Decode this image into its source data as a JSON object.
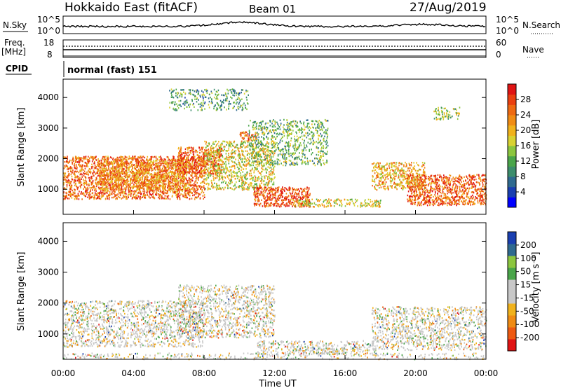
{
  "header": {
    "title": "Hokkaido East (fitACF)",
    "beam": "Beam 01",
    "date": "27/Aug/2019"
  },
  "top_panels": {
    "nsky_label": "N.Sky",
    "nsky_left_ticks": [
      "10^5",
      "10^0"
    ],
    "nsearch_label": "N.Search",
    "nsearch_right_ticks": [
      "10^5",
      "10^0"
    ],
    "freq_label_1": "Freq.",
    "freq_label_2": "[MHz]",
    "freq_ticks": [
      "18",
      "8"
    ],
    "nave_label": "Nave",
    "nave_ticks": [
      "60",
      "0"
    ],
    "cpid_label": "CPID",
    "cpid_text": "normal (fast) 151"
  },
  "chart_data": [
    {
      "type": "heatmap",
      "panel": "power",
      "ylabel": "Slant Range [km]",
      "xlabel": "",
      "x_ticks": [
        "00:00",
        "04:00",
        "08:00",
        "12:00",
        "16:00",
        "20:00",
        "00:00"
      ],
      "xlim_hours": [
        0,
        24
      ],
      "y_ticks": [
        1000,
        2000,
        3000,
        4000
      ],
      "ylim": [
        180,
        4600
      ],
      "colorbar_label": "Power [dB]",
      "colorbar_ticks": [
        "28",
        "24",
        "20",
        "16",
        "12",
        "8",
        "4"
      ],
      "colorbar_colors": [
        "#0000ff",
        "#1a3fb0",
        "#2f6a8f",
        "#3c8d6c",
        "#4aa54a",
        "#8cc63f",
        "#d9d232",
        "#f0b21c",
        "#f08c14",
        "#ee6a12",
        "#ea4010",
        "#e01414"
      ],
      "scatter_regions": [
        {
          "t0": 0.0,
          "t1": 8.0,
          "r0": 700,
          "r1": 2100,
          "level": 0.82
        },
        {
          "t0": 2.0,
          "t1": 7.0,
          "r0": 1000,
          "r1": 2000,
          "level": 0.75
        },
        {
          "t0": 6.5,
          "t1": 9.0,
          "r0": 1500,
          "r1": 2400,
          "level": 0.85
        },
        {
          "t0": 8.0,
          "t1": 12.0,
          "r0": 1000,
          "r1": 2600,
          "level": 0.6
        },
        {
          "t0": 10.0,
          "t1": 11.0,
          "r0": 2600,
          "r1": 2900,
          "level": 0.8
        },
        {
          "t0": 10.8,
          "t1": 14.0,
          "r0": 450,
          "r1": 1100,
          "level": 0.88
        },
        {
          "t0": 13.0,
          "t1": 18.0,
          "r0": 450,
          "r1": 700,
          "level": 0.6
        },
        {
          "t0": 17.5,
          "t1": 20.5,
          "r0": 1000,
          "r1": 1900,
          "level": 0.7
        },
        {
          "t0": 19.5,
          "t1": 24.0,
          "r0": 500,
          "r1": 1500,
          "level": 0.85
        },
        {
          "t0": 6.0,
          "t1": 10.5,
          "r0": 3600,
          "r1": 4300,
          "level": 0.4
        },
        {
          "t0": 10.5,
          "t1": 15.0,
          "r0": 1800,
          "r1": 3300,
          "level": 0.45
        },
        {
          "t0": 21.0,
          "t1": 22.5,
          "r0": 3300,
          "r1": 3700,
          "level": 0.5
        }
      ]
    },
    {
      "type": "heatmap",
      "panel": "velocity",
      "ylabel": "Slant Range [km]",
      "xlabel": "Time UT",
      "x_ticks": [
        "00:00",
        "04:00",
        "08:00",
        "12:00",
        "16:00",
        "20:00",
        "00:00"
      ],
      "xlim_hours": [
        0,
        24
      ],
      "y_ticks": [
        1000,
        2000,
        3000,
        4000
      ],
      "ylim": [
        180,
        4600
      ],
      "colorbar_label": "Velocity [m s⁻¹]",
      "colorbar_ticks": [
        "200",
        "100",
        "50",
        "15",
        "-15",
        "-50",
        "-100",
        "-200"
      ],
      "colorbar_colors": [
        "#e01414",
        "#ee5a12",
        "#f08c14",
        "#f0b21c",
        "#c8c8c8",
        "#c8c8c8",
        "#4aa54a",
        "#8cc63f",
        "#2f6a8f",
        "#1a3fb0"
      ],
      "scatter_regions": [
        {
          "t0": 0.0,
          "t1": 8.0,
          "r0": 600,
          "r1": 2100,
          "level": 0.5
        },
        {
          "t0": 6.5,
          "t1": 12.0,
          "r0": 900,
          "r1": 2600,
          "level": 0.5
        },
        {
          "t0": 11.0,
          "t1": 18.0,
          "r0": 350,
          "r1": 800,
          "level": 0.5
        },
        {
          "t0": 17.5,
          "t1": 24.0,
          "r0": 500,
          "r1": 1900,
          "level": 0.5
        },
        {
          "t0": 13.5,
          "t1": 16.0,
          "r0": 350,
          "r1": 550,
          "level": 0.65
        },
        {
          "t0": 0.0,
          "t1": 24.0,
          "r0": 200,
          "r1": 400,
          "level": 0.3
        }
      ]
    }
  ]
}
